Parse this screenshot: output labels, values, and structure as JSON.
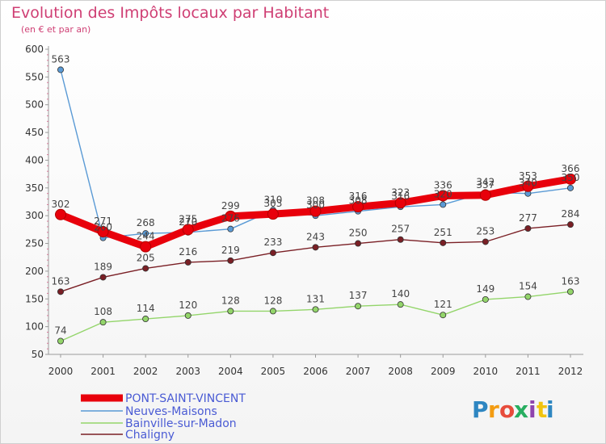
{
  "chart_data": {
    "type": "line",
    "title": "Evolution des Impôts locaux par Habitant",
    "subtitle": "(en € et par an)",
    "xlabel": "",
    "ylabel": "",
    "x": [
      "2000",
      "2001",
      "2002",
      "2003",
      "2004",
      "2005",
      "2006",
      "2007",
      "2008",
      "2009",
      "2010",
      "2011",
      "2012"
    ],
    "ylim": [
      50,
      600
    ],
    "yticks": [
      50,
      100,
      150,
      200,
      250,
      300,
      350,
      400,
      450,
      500,
      550,
      600
    ],
    "grid": false,
    "legend_position": "bottom-left",
    "series": [
      {
        "name": "PONT-SAINT-VINCENT",
        "color": "#e8000b",
        "values": [
          302,
          271,
          244,
          275,
          299,
          303,
          308,
          316,
          323,
          336,
          337,
          353,
          366
        ],
        "labels": [
          "302",
          "271",
          "244",
          "275",
          "299",
          "303",
          "308",
          "316",
          "323",
          "336",
          "337",
          "353",
          "366"
        ]
      },
      {
        "name": "Neuves-Maisons",
        "color": "#5a9ad5",
        "values": [
          563,
          260,
          268,
          270,
          276,
          310,
          300,
          308,
          316,
          320,
          342,
          340,
          350
        ],
        "labels": [
          "563",
          "260",
          "268",
          "270",
          "276",
          "310",
          "300",
          "308",
          "316",
          "320",
          "342",
          "340",
          "350"
        ]
      },
      {
        "name": "Bainville-sur-Madon",
        "color": "#93d56a",
        "values": [
          74,
          108,
          114,
          120,
          128,
          128,
          131,
          137,
          140,
          121,
          149,
          154,
          163
        ],
        "labels": [
          "74",
          "108",
          "114",
          "120",
          "128",
          "128",
          "131",
          "137",
          "140",
          "121",
          "149",
          "154",
          "163"
        ]
      },
      {
        "name": "Chaligny",
        "color": "#7a1f25",
        "values": [
          163,
          189,
          205,
          216,
          219,
          233,
          243,
          250,
          257,
          251,
          253,
          277,
          284
        ],
        "labels": [
          "163",
          "189",
          "205",
          "216",
          "219",
          "233",
          "243",
          "250",
          "257",
          "251",
          "253",
          "277",
          "284"
        ]
      }
    ]
  },
  "logo": {
    "text": "Proxiti",
    "letters": [
      "P",
      "r",
      "o",
      "x",
      "i",
      "t",
      "i"
    ],
    "colors": [
      "#2e86c1",
      "#f39c12",
      "#e74c3c",
      "#27ae60",
      "#8e44ad",
      "#f1c40f",
      "#2e86c1"
    ]
  }
}
